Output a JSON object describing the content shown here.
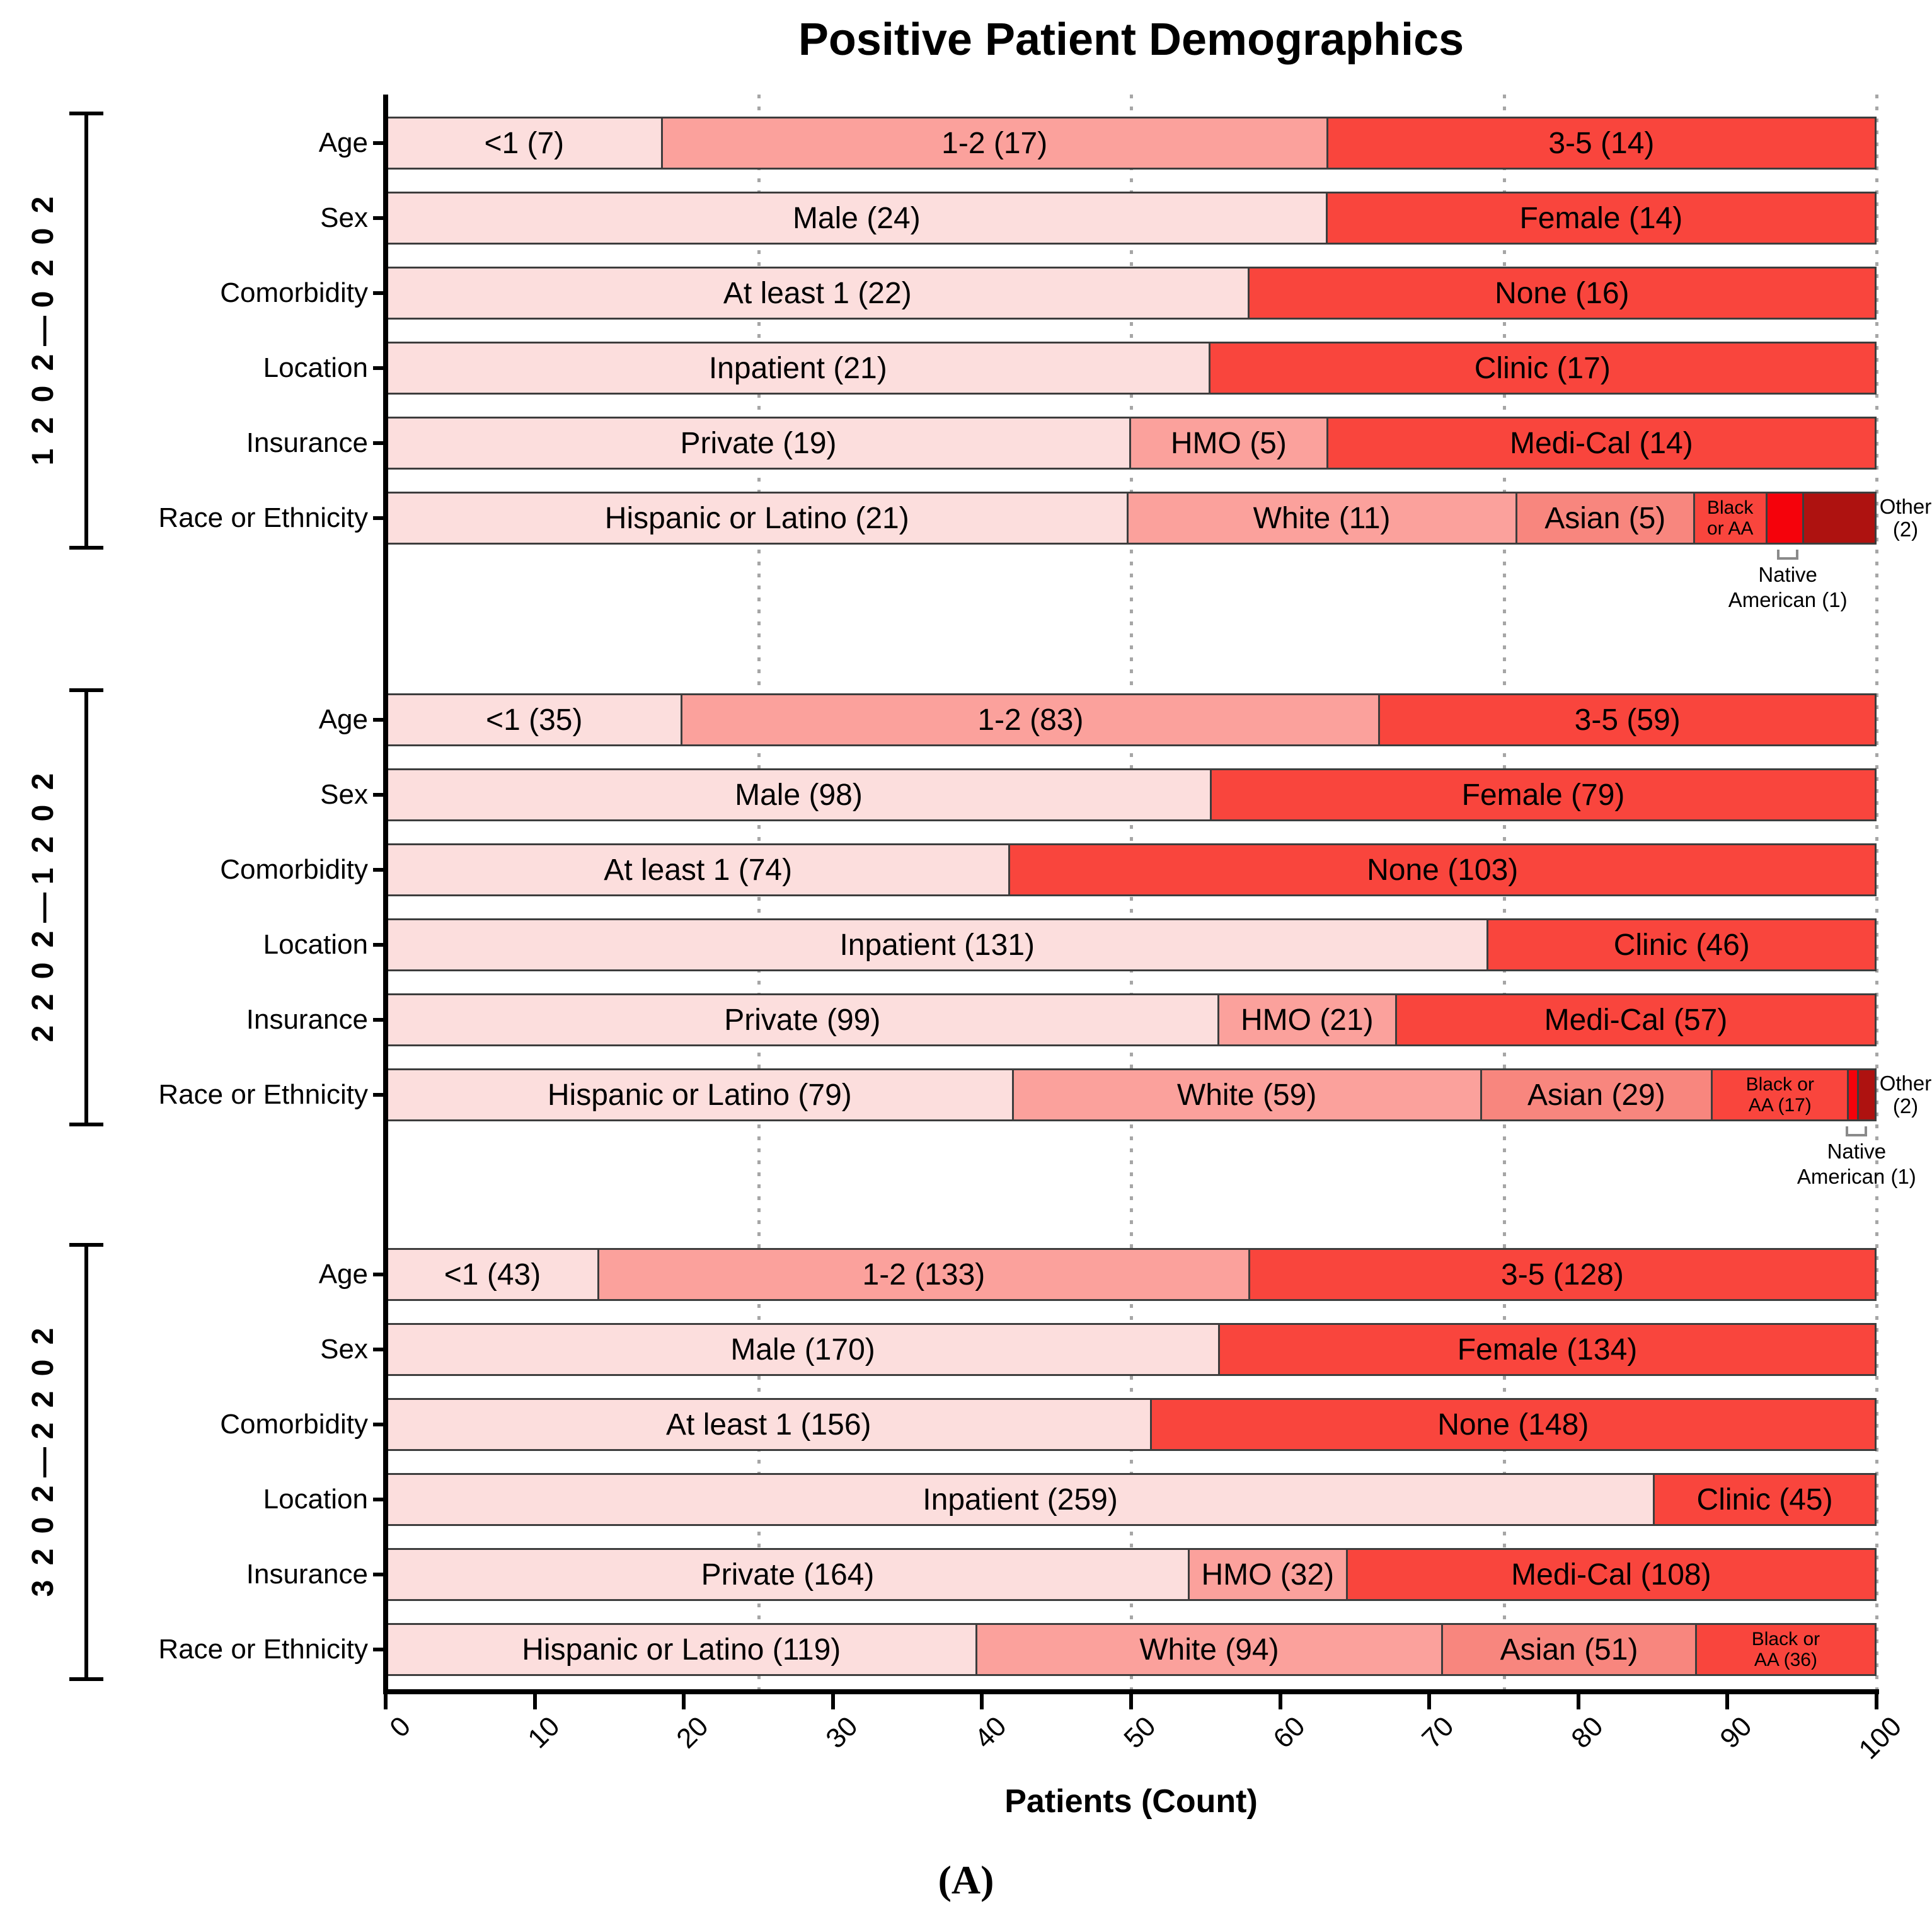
{
  "title": "Positive Patient Demographics",
  "caption": "(A)",
  "x_axis": {
    "label": "Patients (Count)",
    "ticks": [
      0,
      10,
      20,
      30,
      40,
      50,
      60,
      70,
      80,
      90,
      100
    ],
    "gridlines": [
      25,
      50,
      75,
      100
    ],
    "min": 0,
    "max": 100
  },
  "palette": {
    "shade-1": "#FCDEDD",
    "shade-2": "#FBA19C",
    "shade-3": "#F8867E",
    "shade-4": "#F9453D",
    "shade-5": "#F5020B",
    "shade-6": "#AE1210",
    "bar_border": "#3d3d3d",
    "gridline": "#a6a6a6"
  },
  "chart_data": {
    "type": "bar",
    "orientation": "horizontal",
    "stacking": "percent",
    "xlabel": "Patients (Count)",
    "xlim": [
      0,
      100
    ],
    "grid": "dotted-vertical",
    "groups": [
      {
        "label": "2020—2021",
        "rows": [
          {
            "category": "Age",
            "segments": [
              {
                "label": "<1 (7)",
                "value": 7,
                "shade": "shade-1"
              },
              {
                "label": "1-2 (17)",
                "value": 17,
                "shade": "shade-2"
              },
              {
                "label": "3-5 (14)",
                "value": 14,
                "shade": "shade-4"
              }
            ]
          },
          {
            "category": "Sex",
            "segments": [
              {
                "label": "Male (24)",
                "value": 24,
                "shade": "shade-1"
              },
              {
                "label": "Female (14)",
                "value": 14,
                "shade": "shade-4"
              }
            ]
          },
          {
            "category": "Comorbidity",
            "segments": [
              {
                "label": "At least 1 (22)",
                "value": 22,
                "shade": "shade-1"
              },
              {
                "label": "None (16)",
                "value": 16,
                "shade": "shade-4"
              }
            ]
          },
          {
            "category": "Location",
            "segments": [
              {
                "label": "Inpatient (21)",
                "value": 21,
                "shade": "shade-1"
              },
              {
                "label": "Clinic (17)",
                "value": 17,
                "shade": "shade-4"
              }
            ]
          },
          {
            "category": "Insurance",
            "segments": [
              {
                "label": "Private  (19)",
                "value": 19,
                "shade": "shade-1"
              },
              {
                "label": "HMO  (5)",
                "value": 5,
                "shade": "shade-2"
              },
              {
                "label": "Medi-Cal (14)",
                "value": 14,
                "shade": "shade-4"
              }
            ]
          },
          {
            "category": "Race or Ethnicity",
            "segments": [
              {
                "label": "Hispanic or  Latino (21)",
                "value": 21,
                "shade": "shade-1"
              },
              {
                "label": "White (11)",
                "value": 11,
                "shade": "shade-2"
              },
              {
                "label": "Asian (5)",
                "value": 5,
                "shade": "shade-3"
              },
              {
                "label": "Black or AA",
                "lines": [
                  "Black",
                  "or AA"
                ],
                "value": 2,
                "shade": "shade-4"
              },
              {
                "label": "Native American (1)",
                "value": 1,
                "shade": "shade-5",
                "note_below_lines": [
                  "Native",
                  "American (1)"
                ]
              },
              {
                "label": "Other (2)",
                "value": 2,
                "shade": "shade-6",
                "note_right_lines": [
                  "Other",
                  "(2)"
                ]
              }
            ]
          }
        ]
      },
      {
        "label": "2021—2022",
        "rows": [
          {
            "category": "Age",
            "segments": [
              {
                "label": "<1 (35)",
                "value": 35,
                "shade": "shade-1"
              },
              {
                "label": "1-2 (83)",
                "value": 83,
                "shade": "shade-2"
              },
              {
                "label": "3-5 (59)",
                "value": 59,
                "shade": "shade-4"
              }
            ]
          },
          {
            "category": "Sex",
            "segments": [
              {
                "label": "Male (98)",
                "value": 98,
                "shade": "shade-1"
              },
              {
                "label": "Female (79)",
                "value": 79,
                "shade": "shade-4"
              }
            ]
          },
          {
            "category": "Comorbidity",
            "segments": [
              {
                "label": "At least 1 (74)",
                "value": 74,
                "shade": "shade-1"
              },
              {
                "label": "None (103)",
                "value": 103,
                "shade": "shade-4"
              }
            ]
          },
          {
            "category": "Location",
            "segments": [
              {
                "label": "Inpatient (131)",
                "value": 131,
                "shade": "shade-1"
              },
              {
                "label": "Clinic (46)",
                "value": 46,
                "shade": "shade-4"
              }
            ]
          },
          {
            "category": "Insurance",
            "segments": [
              {
                "label": "Private (99)",
                "value": 99,
                "shade": "shade-1"
              },
              {
                "label": "HMO (21)",
                "value": 21,
                "shade": "shade-2"
              },
              {
                "label": "Medi-Cal (57)",
                "value": 57,
                "shade": "shade-4"
              }
            ]
          },
          {
            "category": "Race or Ethnicity",
            "segments": [
              {
                "label": "Hispanic or  Latino (79)",
                "value": 79,
                "shade": "shade-1"
              },
              {
                "label": "White (59)",
                "value": 59,
                "shade": "shade-2"
              },
              {
                "label": "Asian (29)",
                "value": 29,
                "shade": "shade-3"
              },
              {
                "label": "Black or AA (17)",
                "lines": [
                  "Black or",
                  "AA (17)"
                ],
                "value": 17,
                "shade": "shade-4"
              },
              {
                "label": "Native American (1)",
                "value": 1,
                "shade": "shade-5",
                "note_below_lines": [
                  "Native",
                  "American (1)"
                ]
              },
              {
                "label": "Other (2)",
                "value": 2,
                "shade": "shade-6",
                "note_right_lines": [
                  "Other",
                  "(2)"
                ]
              }
            ]
          }
        ]
      },
      {
        "label": "2022—2023",
        "rows": [
          {
            "category": "Age",
            "segments": [
              {
                "label": "<1 (43)",
                "value": 43,
                "shade": "shade-1"
              },
              {
                "label": "1-2 (133)",
                "value": 133,
                "shade": "shade-2"
              },
              {
                "label": "3-5 (128)",
                "value": 128,
                "shade": "shade-4"
              }
            ]
          },
          {
            "category": "Sex",
            "segments": [
              {
                "label": "Male (170)",
                "value": 170,
                "shade": "shade-1"
              },
              {
                "label": "Female (134)",
                "value": 134,
                "shade": "shade-4"
              }
            ]
          },
          {
            "category": "Comorbidity",
            "segments": [
              {
                "label": "At least 1 (156)",
                "value": 156,
                "shade": "shade-1"
              },
              {
                "label": "None (148)",
                "value": 148,
                "shade": "shade-4"
              }
            ]
          },
          {
            "category": "Location",
            "segments": [
              {
                "label": "Inpatient (259)",
                "value": 259,
                "shade": "shade-1"
              },
              {
                "label": "Clinic (45)",
                "value": 45,
                "shade": "shade-4"
              }
            ]
          },
          {
            "category": "Insurance",
            "segments": [
              {
                "label": "Private (164)",
                "value": 164,
                "shade": "shade-1"
              },
              {
                "label": "HMO (32)",
                "value": 32,
                "shade": "shade-2"
              },
              {
                "label": "Medi-Cal (108)",
                "value": 108,
                "shade": "shade-4"
              }
            ]
          },
          {
            "category": "Race or Ethnicity",
            "segments": [
              {
                "label": "Hispanic or  Latino (119)",
                "value": 119,
                "shade": "shade-1"
              },
              {
                "label": "White (94)",
                "value": 94,
                "shade": "shade-2"
              },
              {
                "label": "Asian (51)",
                "value": 51,
                "shade": "shade-3"
              },
              {
                "label": "Black or AA (36)",
                "lines": [
                  "Black or",
                  "AA (36)"
                ],
                "value": 36,
                "shade": "shade-4"
              }
            ]
          }
        ]
      }
    ]
  }
}
